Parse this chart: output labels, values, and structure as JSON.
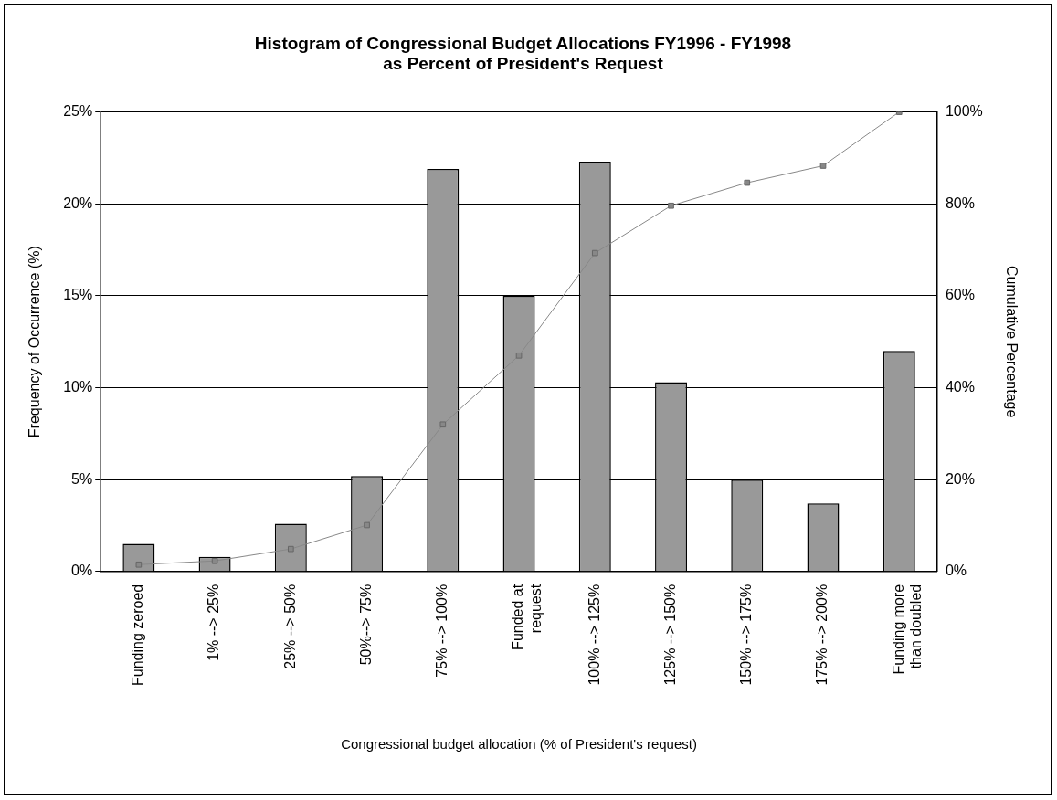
{
  "chart_data": {
    "type": "bar",
    "title": "Histogram of Congressional Budget Allocations FY1996 - FY1998\nas Percent of President's Request",
    "xlabel": "Congressional budget allocation (% of President's request)",
    "ylabel": "Frequency of Occurrence (%)",
    "y2label": "Cumulative Percentage",
    "categories": [
      "Funding zeroed",
      "1% --> 25%",
      "25% --> 50%",
      "50%--> 75%",
      "75% --> 100%",
      "Funded at\nrequest",
      "100% --> 125%",
      "125% --> 150%",
      "150% --> 175%",
      "175% --> 200%",
      "Funding more\nthan doubled"
    ],
    "series": [
      {
        "color": "#999999",
        "values": [
          1.5,
          0.8,
          2.6,
          5.2,
          21.9,
          15.0,
          22.3,
          10.3,
          5.0,
          3.7,
          12.0
        ]
      },
      {
        "type": "line",
        "axis": "y2",
        "color": "#888888",
        "marker": "square",
        "values": [
          1.5,
          2.3,
          4.9,
          10.1,
          32.0,
          47.0,
          69.3,
          79.6,
          84.6,
          88.3,
          100
        ]
      }
    ],
    "ylim": [
      0,
      25
    ],
    "yticks": [
      {
        "value": 0,
        "label": "0%"
      },
      {
        "value": 5,
        "label": "5%"
      },
      {
        "value": 10,
        "label": "10%"
      },
      {
        "value": 15,
        "label": "15%"
      },
      {
        "value": 20,
        "label": "20%"
      },
      {
        "value": 25,
        "label": "25%"
      }
    ],
    "y2lim": [
      0,
      100
    ],
    "y2ticks": [
      {
        "value": 0,
        "label": "0%"
      },
      {
        "value": 20,
        "label": "20%"
      },
      {
        "value": 40,
        "label": "40%"
      },
      {
        "value": 60,
        "label": "60%"
      },
      {
        "value": 80,
        "label": "80%"
      },
      {
        "value": 100,
        "label": "100%"
      }
    ],
    "grid": "y",
    "legend": false
  }
}
